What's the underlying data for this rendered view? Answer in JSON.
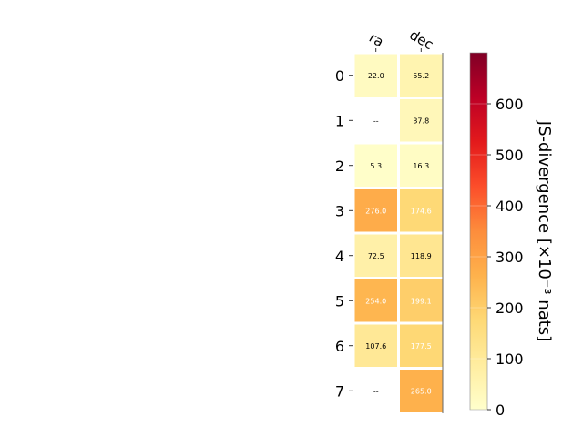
{
  "chart_data": {
    "type": "heatmap",
    "columns": [
      "ra",
      "dec"
    ],
    "rows": [
      "0",
      "1",
      "2",
      "3",
      "4",
      "5",
      "6",
      "7"
    ],
    "values": [
      [
        22.0,
        55.2
      ],
      [
        null,
        37.8
      ],
      [
        5.3,
        16.3
      ],
      [
        276.0,
        174.6
      ],
      [
        72.5,
        118.9
      ],
      [
        254.0,
        199.1
      ],
      [
        107.6,
        177.5
      ],
      [
        null,
        265.0
      ]
    ],
    "cell_labels": [
      [
        "22.0",
        "55.2"
      ],
      [
        "--",
        "37.8"
      ],
      [
        "5.3",
        "16.3"
      ],
      [
        "276.0",
        "174.6"
      ],
      [
        "72.5",
        "118.9"
      ],
      [
        "254.0",
        "199.1"
      ],
      [
        "107.6",
        "177.5"
      ],
      [
        "--",
        "265.0"
      ]
    ],
    "colorbar": {
      "label": "JS-divergence [×10⁻³ nats]",
      "range": [
        0,
        700
      ],
      "ticks": [
        0,
        100,
        200,
        300,
        400,
        500,
        600
      ],
      "colormap": "YlOrRd"
    },
    "grid": false
  }
}
